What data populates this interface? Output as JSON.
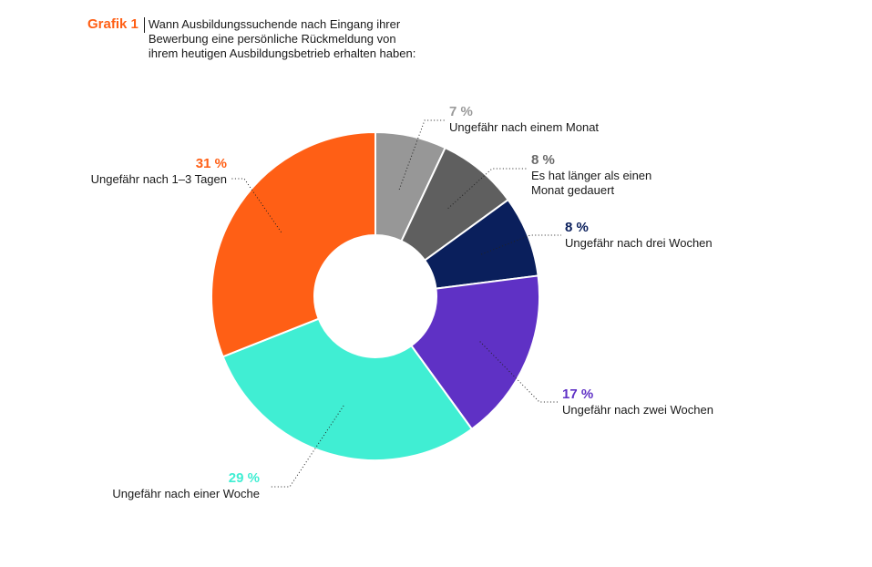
{
  "header": {
    "label": "Grafik 1",
    "title_lines": [
      "Wann Ausbildungssuchende nach Eingang ihrer",
      "Bewerbung eine persönliche Rückmeldung von",
      "ihrem heutigen Ausbildungsbetrieb erhalten haben:"
    ]
  },
  "chart_data": {
    "type": "pie",
    "donut": true,
    "title": "Wann Ausbildungssuchende nach Eingang ihrer Bewerbung eine persönliche Rückmeldung von ihrem heutigen Ausbildungsbetrieb erhalten haben:",
    "slices": [
      {
        "label": "Ungefähr nach einem Monat",
        "label_lines": [
          "Ungefähr nach einem Monat"
        ],
        "pct_text": "7 %",
        "value": 7,
        "color": "#979797"
      },
      {
        "label": "Es hat länger als einen Monat gedauert",
        "label_lines": [
          "Es hat länger als einen",
          "Monat gedauert"
        ],
        "pct_text": "8 %",
        "value": 8,
        "color": "#5f5f5f"
      },
      {
        "label": "Ungefähr nach drei Wochen",
        "label_lines": [
          "Ungefähr nach drei Wochen"
        ],
        "pct_text": "8 %",
        "value": 8,
        "color": "#0a1f5c"
      },
      {
        "label": "Ungefähr nach zwei Wochen",
        "label_lines": [
          "Ungefähr nach zwei Wochen"
        ],
        "pct_text": "17 %",
        "value": 17,
        "color": "#5f31c5"
      },
      {
        "label": "Ungefähr nach einer Woche",
        "label_lines": [
          "Ungefähr nach einer Woche"
        ],
        "pct_text": "29 %",
        "value": 29,
        "color": "#40eed3"
      },
      {
        "label": "Ungefähr nach 1–3 Tagen",
        "label_lines": [
          "Ungefähr nach 1–3 Tagen"
        ],
        "pct_text": "31 %",
        "value": 31,
        "color": "#ff5f15"
      }
    ]
  }
}
